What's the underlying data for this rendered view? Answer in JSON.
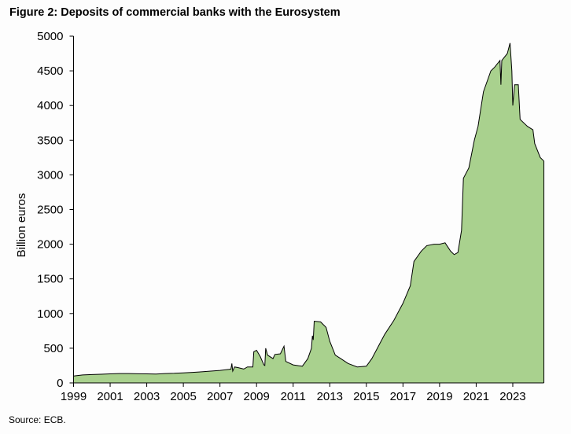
{
  "chart_data": {
    "type": "area",
    "title": "Figure 2: Deposits of commercial banks with the Eurosystem",
    "ylabel": "Billion euros",
    "xlabel": "",
    "source": "Source: ECB.",
    "ylim": [
      0,
      5000
    ],
    "xlim": [
      1999,
      2024.7
    ],
    "yticks": [
      0,
      500,
      1000,
      1500,
      2000,
      2500,
      3000,
      3500,
      4000,
      4500,
      5000
    ],
    "xticks": [
      1999,
      2001,
      2003,
      2005,
      2007,
      2009,
      2011,
      2013,
      2015,
      2017,
      2019,
      2021,
      2023
    ],
    "fill_color": "#a9d18e",
    "line_color": "#000000",
    "points": [
      [
        1999.0,
        100
      ],
      [
        1999.5,
        115
      ],
      [
        2000,
        120
      ],
      [
        2000.5,
        125
      ],
      [
        2001,
        130
      ],
      [
        2001.5,
        135
      ],
      [
        2002,
        135
      ],
      [
        2002.5,
        132
      ],
      [
        2003,
        130
      ],
      [
        2003.5,
        128
      ],
      [
        2004,
        135
      ],
      [
        2004.5,
        138
      ],
      [
        2005,
        145
      ],
      [
        2005.5,
        152
      ],
      [
        2006,
        160
      ],
      [
        2006.5,
        170
      ],
      [
        2007,
        180
      ],
      [
        2007.5,
        195
      ],
      [
        2007.6,
        200
      ],
      [
        2007.65,
        280
      ],
      [
        2007.7,
        170
      ],
      [
        2007.8,
        230
      ],
      [
        2008,
        220
      ],
      [
        2008.3,
        200
      ],
      [
        2008.5,
        230
      ],
      [
        2008.8,
        230
      ],
      [
        2008.85,
        450
      ],
      [
        2009,
        470
      ],
      [
        2009.2,
        380
      ],
      [
        2009.4,
        260
      ],
      [
        2009.45,
        250
      ],
      [
        2009.5,
        500
      ],
      [
        2009.6,
        400
      ],
      [
        2009.9,
        350
      ],
      [
        2010,
        410
      ],
      [
        2010.3,
        420
      ],
      [
        2010.5,
        530
      ],
      [
        2010.6,
        310
      ],
      [
        2011,
        260
      ],
      [
        2011.5,
        240
      ],
      [
        2011.8,
        350
      ],
      [
        2012,
        500
      ],
      [
        2012.05,
        680
      ],
      [
        2012.1,
        620
      ],
      [
        2012.15,
        890
      ],
      [
        2012.5,
        880
      ],
      [
        2012.8,
        800
      ],
      [
        2013,
        600
      ],
      [
        2013.3,
        400
      ],
      [
        2013.6,
        350
      ],
      [
        2014,
        280
      ],
      [
        2014.5,
        230
      ],
      [
        2015,
        240
      ],
      [
        2015.3,
        350
      ],
      [
        2015.7,
        550
      ],
      [
        2016,
        700
      ],
      [
        2016.5,
        900
      ],
      [
        2017,
        1150
      ],
      [
        2017.4,
        1400
      ],
      [
        2017.6,
        1750
      ],
      [
        2018,
        1900
      ],
      [
        2018.3,
        1980
      ],
      [
        2018.7,
        2000
      ],
      [
        2019,
        2000
      ],
      [
        2019.3,
        2020
      ],
      [
        2019.6,
        1900
      ],
      [
        2019.8,
        1850
      ],
      [
        2020.0,
        1880
      ],
      [
        2020.2,
        2200
      ],
      [
        2020.3,
        2950
      ],
      [
        2020.6,
        3100
      ],
      [
        2020.9,
        3500
      ],
      [
        2021.1,
        3700
      ],
      [
        2021.4,
        4200
      ],
      [
        2021.8,
        4500
      ],
      [
        2022.0,
        4550
      ],
      [
        2022.3,
        4650
      ],
      [
        2022.35,
        4300
      ],
      [
        2022.4,
        4650
      ],
      [
        2022.7,
        4750
      ],
      [
        2022.85,
        4900
      ],
      [
        2022.95,
        4500
      ],
      [
        2023.0,
        4000
      ],
      [
        2023.1,
        4300
      ],
      [
        2023.3,
        4300
      ],
      [
        2023.4,
        3800
      ],
      [
        2023.8,
        3700
      ],
      [
        2024.1,
        3650
      ],
      [
        2024.2,
        3450
      ],
      [
        2024.5,
        3250
      ],
      [
        2024.7,
        3200
      ]
    ]
  }
}
